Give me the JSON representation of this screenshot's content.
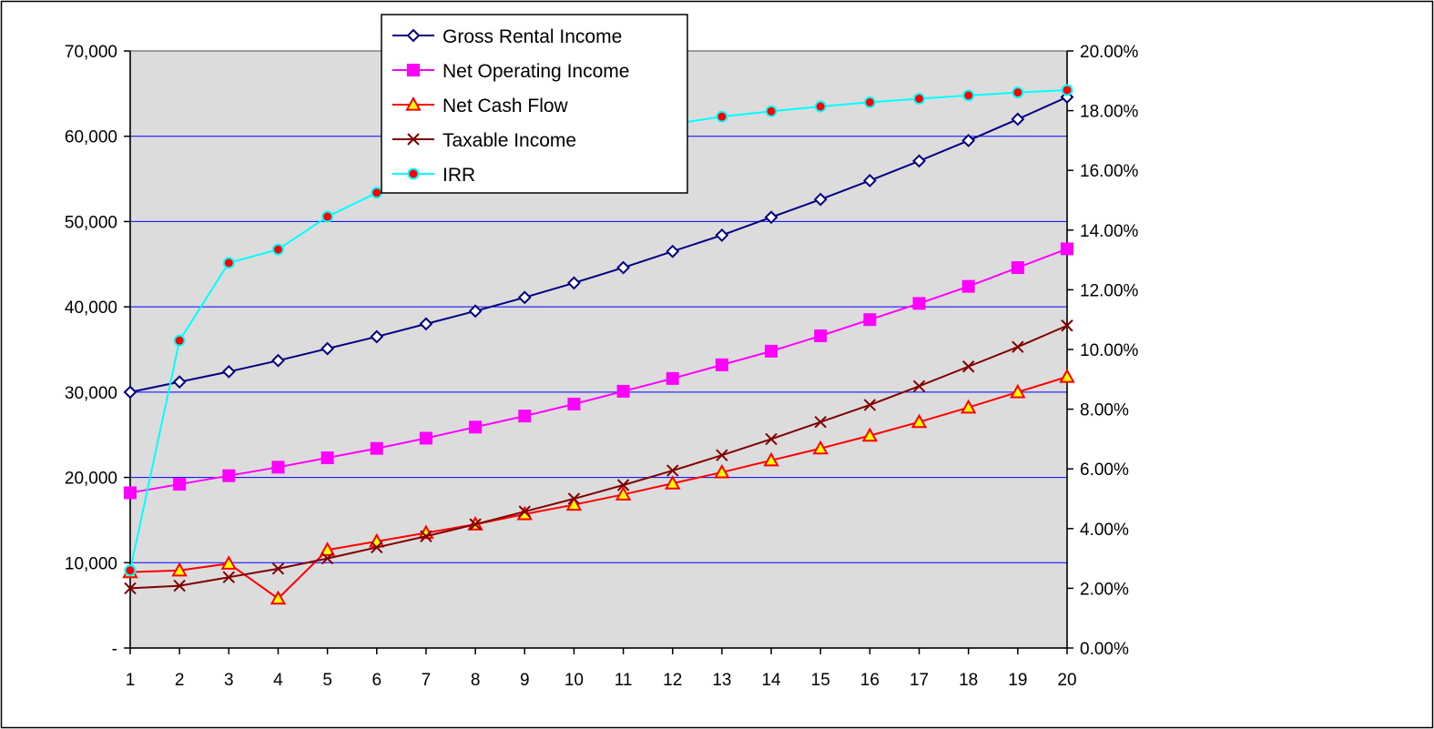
{
  "chart_data": {
    "type": "line",
    "title": "",
    "xlabel": "",
    "ylabel": "",
    "x": [
      1,
      2,
      3,
      4,
      5,
      6,
      7,
      8,
      9,
      10,
      11,
      12,
      13,
      14,
      15,
      16,
      17,
      18,
      19,
      20
    ],
    "ylim": [
      0,
      70000
    ],
    "y2lim": [
      0,
      0.2
    ],
    "y_ticks": [
      "-",
      "10,000",
      "20,000",
      "30,000",
      "40,000",
      "50,000",
      "60,000",
      "70,000"
    ],
    "y2_ticks": [
      "0.00%",
      "2.00%",
      "4.00%",
      "6.00%",
      "8.00%",
      "10.00%",
      "12.00%",
      "14.00%",
      "16.00%",
      "18.00%",
      "20.00%"
    ],
    "grid": true,
    "legend_position": "top-center",
    "series": [
      {
        "name": "Gross Rental Income",
        "axis": "left",
        "color": "#000080",
        "marker": "diamond",
        "marker_fill": "#ffffff",
        "marker_stroke": "#000080",
        "values": [
          30000,
          31200,
          32400,
          33700,
          35100,
          36500,
          38000,
          39500,
          41100,
          42800,
          44600,
          46500,
          48400,
          50500,
          52600,
          54800,
          57100,
          59500,
          62000,
          64600
        ]
      },
      {
        "name": "Net Operating Income",
        "axis": "left",
        "color": "#ff00ff",
        "marker": "square",
        "marker_fill": "#ff00ff",
        "marker_stroke": "#ff00ff",
        "values": [
          18200,
          19200,
          20200,
          21200,
          22300,
          23400,
          24600,
          25900,
          27200,
          28600,
          30100,
          31600,
          33200,
          34800,
          36600,
          38500,
          40400,
          42400,
          44600,
          46800
        ]
      },
      {
        "name": "Net Cash Flow",
        "axis": "left",
        "color": "#ff0000",
        "marker": "triangle",
        "marker_fill": "#ffff00",
        "marker_stroke": "#ff0000",
        "values": [
          8900,
          9100,
          9900,
          5800,
          11500,
          12500,
          13500,
          14500,
          15700,
          16800,
          18000,
          19300,
          20600,
          22000,
          23400,
          24900,
          26500,
          28200,
          30000,
          31800
        ]
      },
      {
        "name": "Taxable Income",
        "axis": "left",
        "color": "#800000",
        "marker": "x",
        "marker_fill": "none",
        "marker_stroke": "#800000",
        "values": [
          7000,
          7300,
          8300,
          9300,
          10500,
          11800,
          13100,
          14500,
          16000,
          17500,
          19100,
          20800,
          22600,
          24500,
          26500,
          28500,
          30700,
          33000,
          35300,
          37800
        ]
      },
      {
        "name": "IRR",
        "axis": "right",
        "color": "#00ffff",
        "marker": "circle",
        "marker_fill": "#ff0000",
        "marker_stroke": "#00ffff",
        "values": [
          0.026,
          0.103,
          0.129,
          0.1335,
          0.1445,
          0.1525,
          0.1585,
          0.1635,
          0.1675,
          0.1705,
          0.1735,
          0.1755,
          0.178,
          0.1798,
          0.1814,
          0.1828,
          0.184,
          0.1851,
          0.1861,
          0.1869
        ]
      }
    ]
  }
}
